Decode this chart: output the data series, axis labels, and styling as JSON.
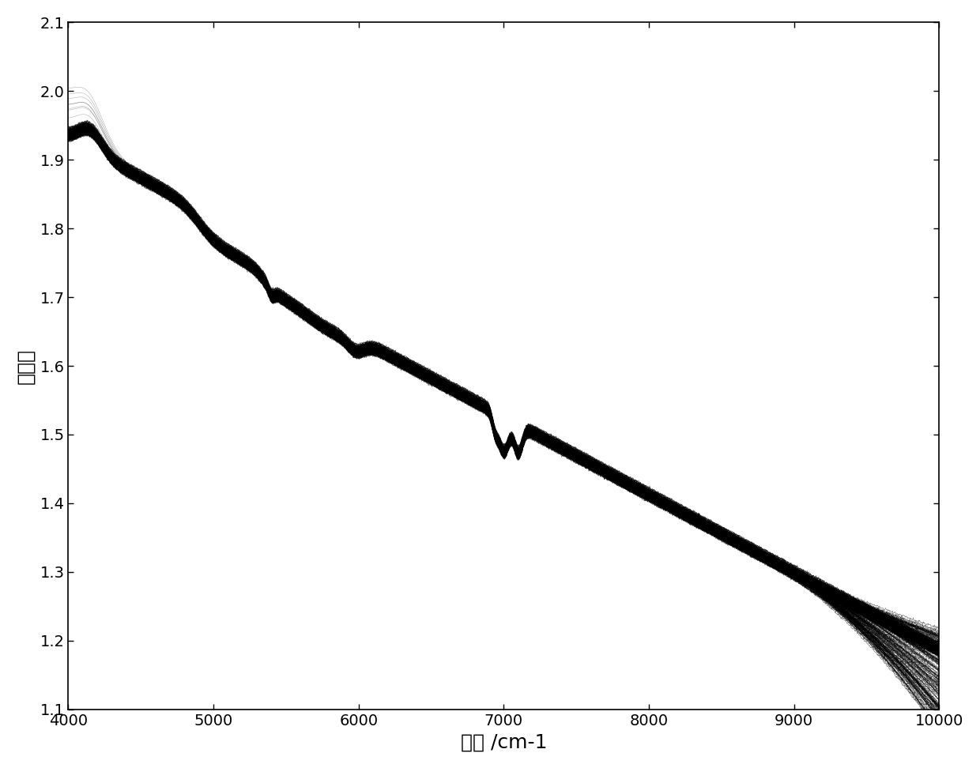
{
  "xlabel": "波长 /cm-1",
  "ylabel": "吸光度",
  "xlim": [
    4000,
    10000
  ],
  "ylim": [
    1.1,
    2.1
  ],
  "xticks": [
    4000,
    5000,
    6000,
    7000,
    8000,
    9000,
    10000
  ],
  "yticks": [
    1.1,
    1.2,
    1.3,
    1.4,
    1.5,
    1.6,
    1.7,
    1.8,
    1.9,
    2.0,
    2.1
  ],
  "line_color": "black",
  "bg_color": "white",
  "n_samples": 300,
  "seed": 0
}
